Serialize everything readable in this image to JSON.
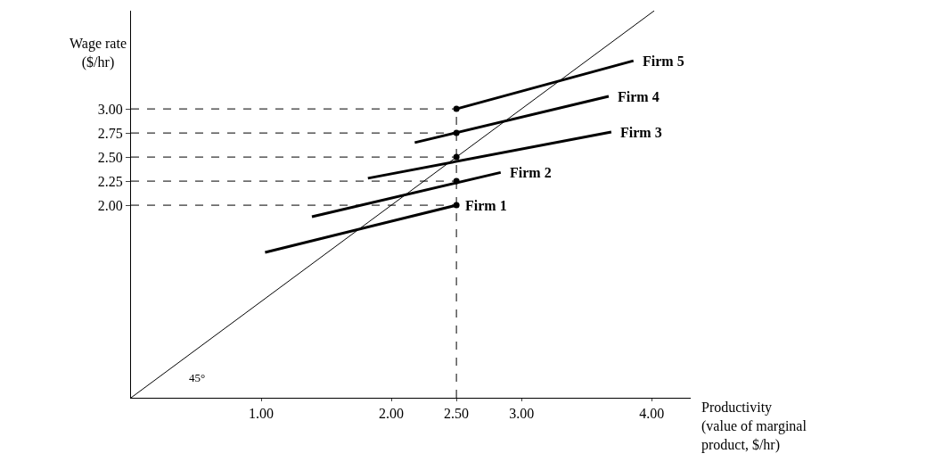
{
  "chart_data": {
    "type": "line",
    "xlabel": "Productivity\n(value of marginal\nproduct, $/hr)",
    "ylabel": "Wage rate\n($/hr)",
    "xlim": [
      0,
      4.3
    ],
    "ylim": [
      0,
      4.02
    ],
    "xticks": [
      {
        "value": 1,
        "label": "1.00"
      },
      {
        "value": 2,
        "label": "2.00"
      },
      {
        "value": 2.5,
        "label": "2.50"
      },
      {
        "value": 3,
        "label": "3.00"
      },
      {
        "value": 4,
        "label": "4.00"
      }
    ],
    "yticks": [
      {
        "value": 2,
        "label": "2.00"
      },
      {
        "value": 2.25,
        "label": "2.25"
      },
      {
        "value": 2.5,
        "label": "2.50"
      },
      {
        "value": 2.75,
        "label": "2.75"
      },
      {
        "value": 3,
        "label": "3.00"
      }
    ],
    "legend": false,
    "annotations": [
      "45°"
    ],
    "series": [
      {
        "line_style": "dashed",
        "color": "#000000",
        "x": [
          0,
          2.5
        ],
        "values": [
          2,
          2
        ]
      },
      {
        "line_style": "dashed",
        "color": "#000000",
        "x": [
          0,
          2.5
        ],
        "values": [
          2.25,
          2.25
        ]
      },
      {
        "line_style": "dashed",
        "color": "#000000",
        "x": [
          0,
          2.5
        ],
        "values": [
          2.5,
          2.5
        ]
      },
      {
        "line_style": "dashed",
        "color": "#000000",
        "x": [
          0,
          2.5
        ],
        "values": [
          2.75,
          2.75
        ]
      },
      {
        "line_style": "dashed",
        "color": "#000000",
        "x": [
          0,
          2.5
        ],
        "values": [
          3,
          3
        ]
      },
      {
        "line_style": "dashed",
        "color": "#000000",
        "x": [
          2.5,
          2.5
        ],
        "values": [
          0,
          3
        ]
      },
      {
        "line_style": "solid",
        "color": "#000000",
        "x": [
          0,
          4.02
        ],
        "values": [
          0,
          4.02
        ]
      },
      {
        "line_style": "solid",
        "name": "Firm 1",
        "color": "#000000",
        "x": [
          1.03,
          2.5
        ],
        "values": [
          1.51,
          2.0
        ]
      },
      {
        "line_style": "solid",
        "name": "Firm 2",
        "color": "#000000",
        "x": [
          1.39,
          2.84
        ],
        "values": [
          1.88,
          2.34
        ]
      },
      {
        "line_style": "solid",
        "name": "Firm 3",
        "color": "#000000",
        "x": [
          1.82,
          3.69
        ],
        "values": [
          2.28,
          2.76
        ]
      },
      {
        "line_style": "solid",
        "name": "Firm 4",
        "color": "#000000",
        "x": [
          2.18,
          3.67
        ],
        "values": [
          2.65,
          3.13
        ]
      },
      {
        "line_style": "solid",
        "name": "Firm 5",
        "color": "#000000",
        "x": [
          2.5,
          3.86
        ],
        "values": [
          3.0,
          3.5
        ]
      },
      {
        "type": "scatter",
        "marker": "circle",
        "color": "#000000",
        "x": [
          2.5,
          2.5,
          2.5,
          2.5,
          2.5
        ],
        "values": [
          2,
          2.25,
          2.5,
          2.75,
          3
        ]
      }
    ]
  }
}
